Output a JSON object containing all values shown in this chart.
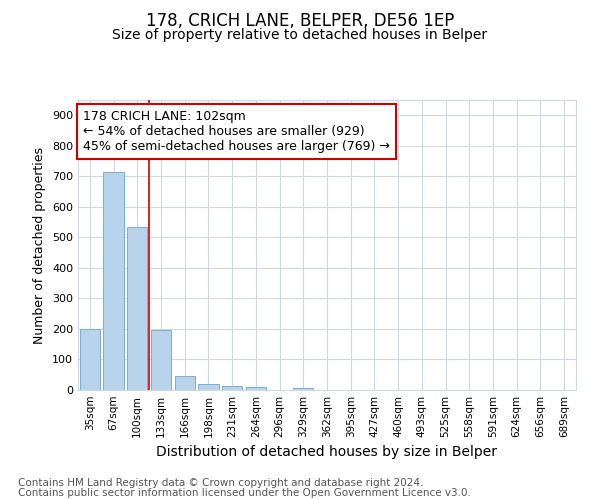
{
  "title1": "178, CRICH LANE, BELPER, DE56 1EP",
  "title2": "Size of property relative to detached houses in Belper",
  "xlabel": "Distribution of detached houses by size in Belper",
  "ylabel": "Number of detached properties",
  "categories": [
    "35sqm",
    "67sqm",
    "100sqm",
    "133sqm",
    "166sqm",
    "198sqm",
    "231sqm",
    "264sqm",
    "296sqm",
    "329sqm",
    "362sqm",
    "395sqm",
    "427sqm",
    "460sqm",
    "493sqm",
    "525sqm",
    "558sqm",
    "591sqm",
    "624sqm",
    "656sqm",
    "689sqm"
  ],
  "values": [
    200,
    715,
    535,
    195,
    45,
    20,
    14,
    10,
    0,
    8,
    0,
    0,
    0,
    0,
    0,
    0,
    0,
    0,
    0,
    0,
    0
  ],
  "bar_color": "#b8d4ed",
  "bar_edge_color": "#7aadd4",
  "red_line_index": 2,
  "annotation_line1": "178 CRICH LANE: 102sqm",
  "annotation_line2": "← 54% of detached houses are smaller (929)",
  "annotation_line3": "45% of semi-detached houses are larger (769) →",
  "annotation_box_color": "#ffffff",
  "annotation_box_edge": "#cc0000",
  "ylim": [
    0,
    950
  ],
  "yticks": [
    0,
    100,
    200,
    300,
    400,
    500,
    600,
    700,
    800,
    900
  ],
  "footer1": "Contains HM Land Registry data © Crown copyright and database right 2024.",
  "footer2": "Contains public sector information licensed under the Open Government Licence v3.0.",
  "bg_color": "#ffffff",
  "grid_color": "#d0d8e0",
  "title1_fontsize": 12,
  "title2_fontsize": 10,
  "xlabel_fontsize": 10,
  "ylabel_fontsize": 9,
  "tick_fontsize": 7.5,
  "annot_fontsize": 9,
  "footer_fontsize": 7.5
}
